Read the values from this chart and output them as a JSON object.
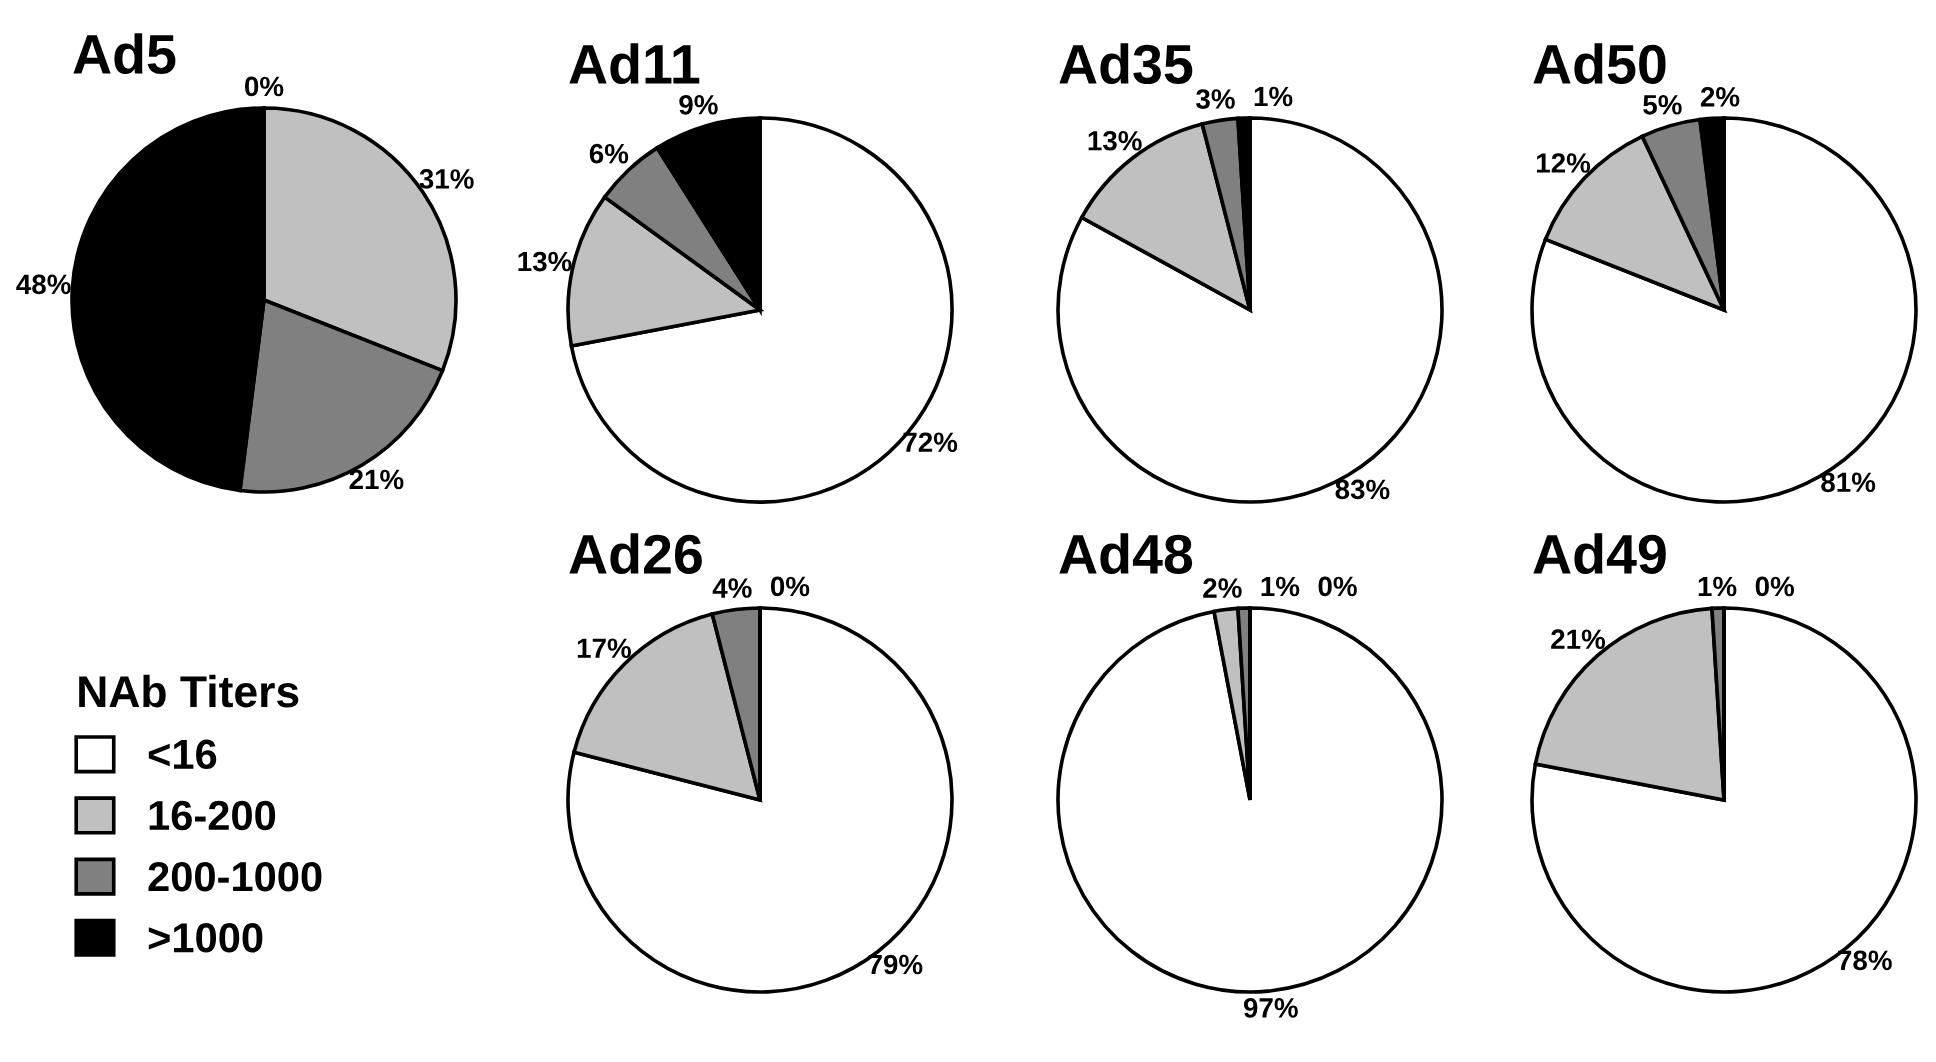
{
  "chart_data": [
    {
      "type": "pie",
      "title": "Ad5",
      "categories": [
        "<16",
        "16-200",
        "200-1000",
        ">1000"
      ],
      "values": [
        0,
        31,
        21,
        48
      ],
      "value_labels": [
        "0%",
        "31%",
        "21%",
        "48%"
      ],
      "colors": [
        "#ffffff",
        "#c0c0c0",
        "#808080",
        "#000000"
      ],
      "legend": "bottom left",
      "legend_title": "NAb Titers"
    },
    {
      "type": "pie",
      "title": "Ad11",
      "categories": [
        null,
        null,
        null,
        null
      ],
      "values": [
        72,
        13,
        6,
        9
      ],
      "value_labels": [
        "72%",
        "13%",
        "6%",
        "9%"
      ],
      "colors": [
        "#ffffff",
        "#c0c0c0",
        "#808080",
        "#000000"
      ]
    },
    {
      "type": "pie",
      "title": "Ad35",
      "categories": [
        null,
        null,
        null,
        null
      ],
      "values": [
        83,
        13,
        3,
        1
      ],
      "value_labels": [
        "83%",
        "13%",
        "3%",
        "1%"
      ],
      "colors": [
        "#ffffff",
        "#c0c0c0",
        "#808080",
        "#000000"
      ]
    },
    {
      "type": "pie",
      "title": "Ad50",
      "categories": [
        null,
        null,
        null,
        null
      ],
      "values": [
        81,
        12,
        5,
        2
      ],
      "value_labels": [
        "81%",
        "12%",
        "5%",
        "2%"
      ],
      "colors": [
        "#ffffff",
        "#c0c0c0",
        "#808080",
        "#000000"
      ]
    },
    {
      "type": "pie",
      "title": "Ad26",
      "categories": [
        null,
        null,
        null,
        null
      ],
      "values": [
        79,
        17,
        4,
        0
      ],
      "value_labels": [
        "79%",
        "17%",
        "4%",
        "0%"
      ],
      "colors": [
        "#ffffff",
        "#c0c0c0",
        "#808080",
        "#000000"
      ]
    },
    {
      "type": "pie",
      "title": "Ad48",
      "categories": [
        null,
        null,
        null,
        null
      ],
      "values": [
        97,
        2,
        1,
        0
      ],
      "value_labels": [
        "97%",
        "2%",
        "1%",
        "0%"
      ],
      "colors": [
        "#ffffff",
        "#c0c0c0",
        "#808080",
        "#000000"
      ]
    },
    {
      "type": "pie",
      "title": "Ad49",
      "categories": [
        null,
        null,
        null,
        null
      ],
      "values": [
        78,
        21,
        1,
        0
      ],
      "value_labels": [
        "78%",
        "21%",
        "1%",
        "0%"
      ],
      "colors": [
        "#ffffff",
        "#c0c0c0",
        "#808080",
        "#000000"
      ]
    }
  ]
}
